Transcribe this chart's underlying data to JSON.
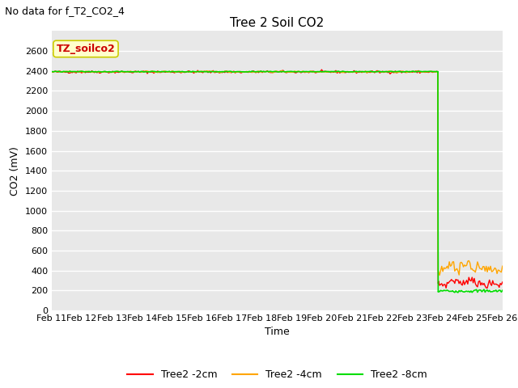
{
  "title": "Tree 2 Soil CO2",
  "subtitle": "No data for f_T2_CO2_4",
  "ylabel": "CO2 (mV)",
  "xlabel": "Time",
  "ylim": [
    0,
    2800
  ],
  "yticks": [
    0,
    200,
    400,
    600,
    800,
    1000,
    1200,
    1400,
    1600,
    1800,
    2000,
    2200,
    2400,
    2600
  ],
  "xtick_labels": [
    "Feb 11",
    "Feb 12",
    "Feb 13",
    "Feb 14",
    "Feb 15",
    "Feb 16",
    "Feb 17",
    "Feb 18",
    "Feb 19",
    "Feb 20",
    "Feb 21",
    "Feb 22",
    "Feb 23",
    "Feb 24",
    "Feb 25",
    "Feb 26"
  ],
  "annotation_box": "TZ_soilco2",
  "annotation_box_facecolor": "#ffffcc",
  "annotation_box_edgecolor": "#cccc00",
  "line_colors": {
    "2cm": "#ff0000",
    "4cm": "#ffa500",
    "8cm": "#00dd00"
  },
  "legend_labels": [
    "Tree2 -2cm",
    "Tree2 -4cm",
    "Tree2 -8cm"
  ],
  "fig_facecolor": "#ffffff",
  "ax_facecolor": "#e8e8e8",
  "grid_color": "#ffffff",
  "subtitle_fontsize": 9,
  "title_fontsize": 11,
  "ylabel_fontsize": 9,
  "xlabel_fontsize": 9,
  "tick_fontsize": 8,
  "legend_fontsize": 9
}
